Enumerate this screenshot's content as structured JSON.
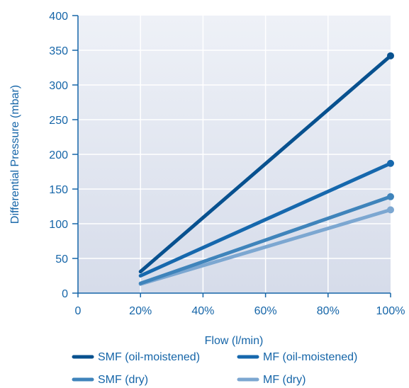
{
  "chart_data": {
    "type": "line",
    "xlabel": "Flow (l/min)",
    "ylabel": "Differential Pressure (mbar)",
    "x_ticks": [
      "0",
      "20%",
      "40%",
      "60%",
      "80%",
      "100%"
    ],
    "y_ticks": [
      "0",
      "50",
      "100",
      "150",
      "200",
      "250",
      "300",
      "350",
      "400"
    ],
    "xlim": [
      0,
      100
    ],
    "ylim": [
      0,
      400
    ],
    "grid": true,
    "legend_position": "bottom",
    "x": [
      20,
      100
    ],
    "series": [
      {
        "name": "SMF (oil-moistened)",
        "color": "#08518f",
        "values": [
          31,
          342
        ]
      },
      {
        "name": "MF (oil-moistened)",
        "color": "#1668ad",
        "values": [
          25,
          187
        ]
      },
      {
        "name": "SMF (dry)",
        "color": "#3f84bb",
        "values": [
          14,
          139
        ]
      },
      {
        "name": "MF (dry)",
        "color": "#7ca7d1",
        "values": [
          13,
          120
        ]
      }
    ],
    "colors": {
      "plot_background": "#dfe4ef",
      "axis": "#1565a8",
      "grid": "#ffffff",
      "text": "#1565a8"
    }
  }
}
